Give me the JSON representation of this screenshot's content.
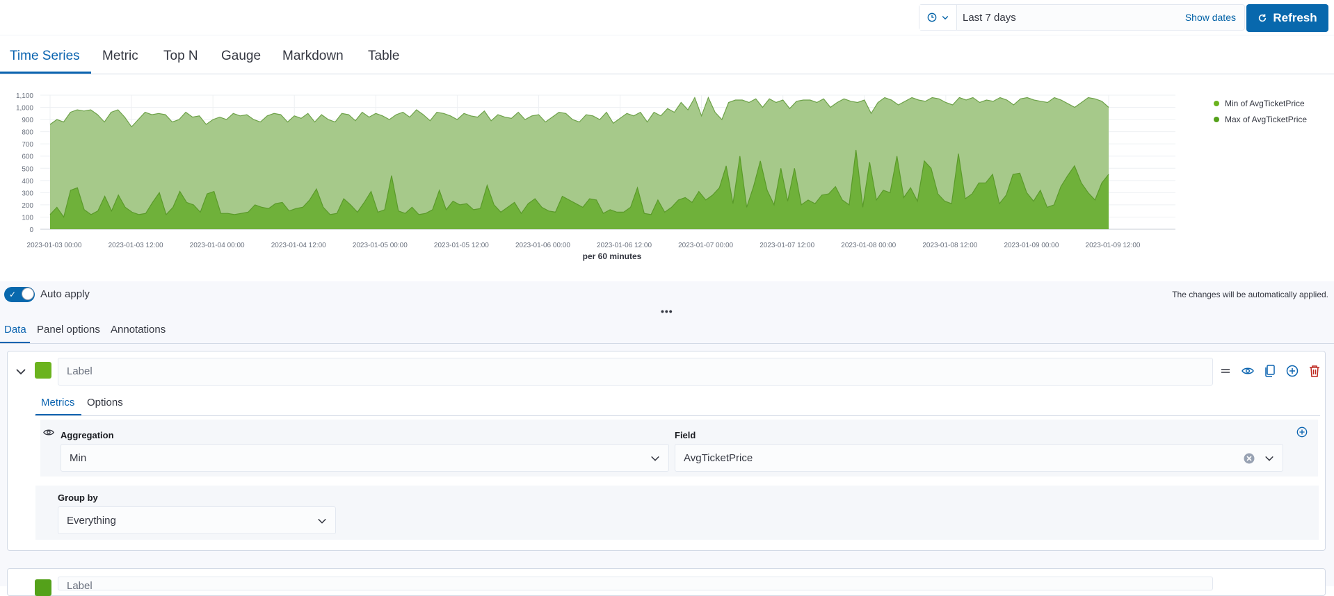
{
  "header": {
    "time_range": "Last 7 days",
    "show_dates_label": "Show dates",
    "refresh_label": "Refresh"
  },
  "viz_tabs": [
    "Time Series",
    "Metric",
    "Top N",
    "Gauge",
    "Markdown",
    "Table"
  ],
  "viz_active_tab": "Time Series",
  "chart_data": {
    "type": "area",
    "xlabel": "per 60 minutes",
    "ylim": [
      0,
      1100
    ],
    "yticks": [
      "0",
      "100",
      "200",
      "300",
      "400",
      "500",
      "600",
      "700",
      "800",
      "900",
      "1,000",
      "1,100"
    ],
    "xticks": [
      "2023-01-03 00:00",
      "2023-01-03 12:00",
      "2023-01-04 00:00",
      "2023-01-04 12:00",
      "2023-01-05 00:00",
      "2023-01-05 12:00",
      "2023-01-06 00:00",
      "2023-01-06 12:00",
      "2023-01-07 00:00",
      "2023-01-07 12:00",
      "2023-01-08 00:00",
      "2023-01-08 12:00",
      "2023-01-09 00:00",
      "2023-01-09 12:00"
    ],
    "x_start_hour": 0,
    "x_end_hour": 156,
    "grid": true,
    "legend_position": "right",
    "series": [
      {
        "name": "Min of AvgTicketPrice",
        "color": "#6bb31e",
        "values": [
          120,
          180,
          100,
          320,
          340,
          160,
          120,
          150,
          270,
          150,
          280,
          180,
          140,
          120,
          130,
          220,
          300,
          120,
          180,
          310,
          220,
          200,
          140,
          290,
          310,
          130,
          130,
          120,
          130,
          140,
          200,
          180,
          170,
          210,
          220,
          150,
          170,
          180,
          240,
          330,
          180,
          120,
          130,
          250,
          200,
          140,
          220,
          310,
          140,
          160,
          440,
          150,
          130,
          180,
          120,
          130,
          160,
          320,
          160,
          230,
          200,
          210,
          160,
          170,
          360,
          200,
          140,
          180,
          220,
          130,
          210,
          250,
          180,
          150,
          140,
          270,
          240,
          210,
          180,
          250,
          240,
          130,
          160,
          140,
          140,
          180,
          340,
          130,
          120,
          240,
          140,
          180,
          240,
          260,
          220,
          310,
          240,
          280,
          340,
          520,
          210,
          600,
          180,
          350,
          560,
          320,
          200,
          500,
          230,
          500,
          200,
          240,
          210,
          280,
          290,
          350,
          240,
          200,
          650,
          180,
          550,
          240,
          320,
          300,
          600,
          260,
          340,
          230,
          560,
          500,
          290,
          230,
          210,
          620,
          250,
          290,
          380,
          380,
          450,
          210,
          280,
          450,
          460,
          300,
          230,
          320,
          180,
          200,
          350,
          440,
          520,
          380,
          300,
          240,
          380,
          450
        ]
      },
      {
        "name": "Max of AvgTicketPrice",
        "color": "#54b399",
        "values": [
          860,
          900,
          880,
          960,
          980,
          970,
          980,
          940,
          880,
          960,
          980,
          920,
          840,
          900,
          960,
          940,
          950,
          940,
          880,
          900,
          960,
          920,
          930,
          860,
          900,
          920,
          900,
          950,
          930,
          940,
          900,
          880,
          930,
          950,
          940,
          880,
          930,
          910,
          950,
          880,
          940,
          900,
          880,
          950,
          940,
          890,
          960,
          920,
          950,
          930,
          900,
          940,
          960,
          920,
          980,
          940,
          890,
          960,
          950,
          930,
          900,
          950,
          930,
          920,
          970,
          890,
          940,
          920,
          910,
          960,
          900,
          930,
          940,
          880,
          920,
          960,
          950,
          900,
          880,
          940,
          930,
          900,
          960,
          870,
          910,
          950,
          930,
          960,
          880,
          960,
          930,
          990,
          960,
          1040,
          980,
          1080,
          930,
          1080,
          960,
          900,
          1040,
          1060,
          1060,
          1040,
          1070,
          1000,
          1070,
          1040,
          1060,
          990,
          1050,
          1060,
          1060,
          1040,
          1070,
          1000,
          1040,
          1070,
          1050,
          1040,
          1060,
          950,
          1040,
          1080,
          1060,
          1020,
          1050,
          1080,
          1060,
          1050,
          1080,
          1070,
          1040,
          1020,
          1080,
          1060,
          1080,
          1040,
          1060,
          1050,
          1080,
          1060,
          1020,
          1070,
          1080,
          1060,
          1050,
          1040,
          1080,
          1060,
          1030,
          1000,
          1040,
          1080,
          1070,
          1050,
          1000
        ]
      }
    ]
  },
  "editor": {
    "auto_apply_label": "Auto apply",
    "auto_apply_note": "The changes will be automatically applied.",
    "tabs": [
      "Data",
      "Panel options",
      "Annotations"
    ],
    "active_tab": "Data",
    "series": {
      "color": "#6bb31e",
      "label_placeholder": "Label",
      "sub_tabs": [
        "Metrics",
        "Options"
      ],
      "active_sub_tab": "Metrics",
      "aggregation_label": "Aggregation",
      "aggregation_value": "Min",
      "field_label": "Field",
      "field_value": "AvgTicketPrice",
      "group_by_label": "Group by",
      "group_by_value": "Everything"
    },
    "series2": {
      "color": "#54a11a",
      "label_placeholder": "Label"
    }
  }
}
